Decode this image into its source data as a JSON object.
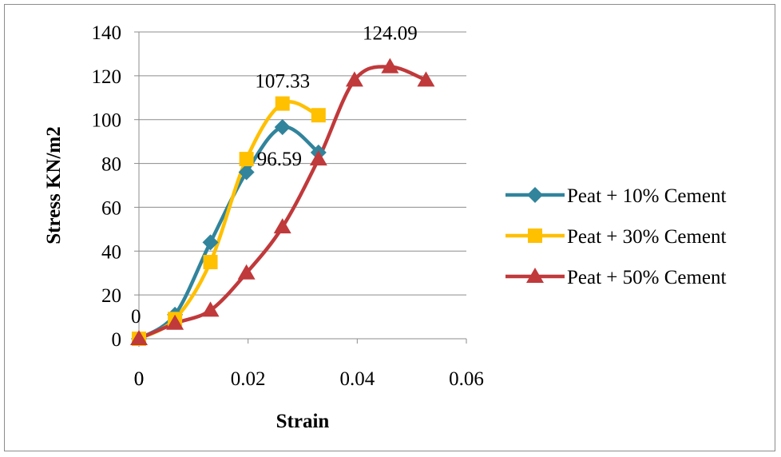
{
  "chart_data": {
    "type": "line",
    "title": "",
    "xlabel": "Strain",
    "ylabel": "Stress KN/m2",
    "xlim": [
      0,
      0.06
    ],
    "ylim": [
      0,
      140
    ],
    "x_ticks": [
      0,
      0.02,
      0.04,
      0.06
    ],
    "x_tick_labels": [
      "0",
      "0.02",
      "0.04",
      "0.06"
    ],
    "y_ticks": [
      0,
      20,
      40,
      60,
      80,
      100,
      120,
      140
    ],
    "y_tick_labels": [
      "0",
      "20",
      "40",
      "60",
      "80",
      "100",
      "120",
      "140"
    ],
    "grid": "horizontal",
    "legend_position": "right",
    "series": [
      {
        "name": "Peat + 10% Cement",
        "color": "#31849B",
        "marker": "diamond",
        "x": [
          0,
          0.0066,
          0.0131,
          0.0197,
          0.0263,
          0.0329
        ],
        "y": [
          0,
          11,
          44,
          76,
          96.59,
          85
        ]
      },
      {
        "name": "Peat + 30% Cement",
        "color": "#FFC000",
        "marker": "square",
        "x": [
          0,
          0.0066,
          0.0131,
          0.0197,
          0.0263,
          0.0329
        ],
        "y": [
          0,
          9,
          35,
          82,
          107.33,
          102
        ]
      },
      {
        "name": "Peat + 50% Cement",
        "color": "#C0393B",
        "marker": "triangle",
        "x": [
          0,
          0.0066,
          0.0131,
          0.0197,
          0.0263,
          0.0329,
          0.0395,
          0.046,
          0.0526
        ],
        "y": [
          0,
          7,
          13,
          30,
          51,
          82,
          118,
          124.09,
          118
        ]
      }
    ],
    "annotations": [
      {
        "text": "124.09",
        "x": 0.046,
        "y": 124.09,
        "series": 2
      },
      {
        "text": "107.33",
        "x": 0.0263,
        "y": 107.33,
        "series": 1
      },
      {
        "text": "96.59",
        "x": 0.0263,
        "y": 96.59,
        "series": 0
      },
      {
        "text": "0",
        "x": 0,
        "y": 0,
        "series": 0
      }
    ]
  }
}
